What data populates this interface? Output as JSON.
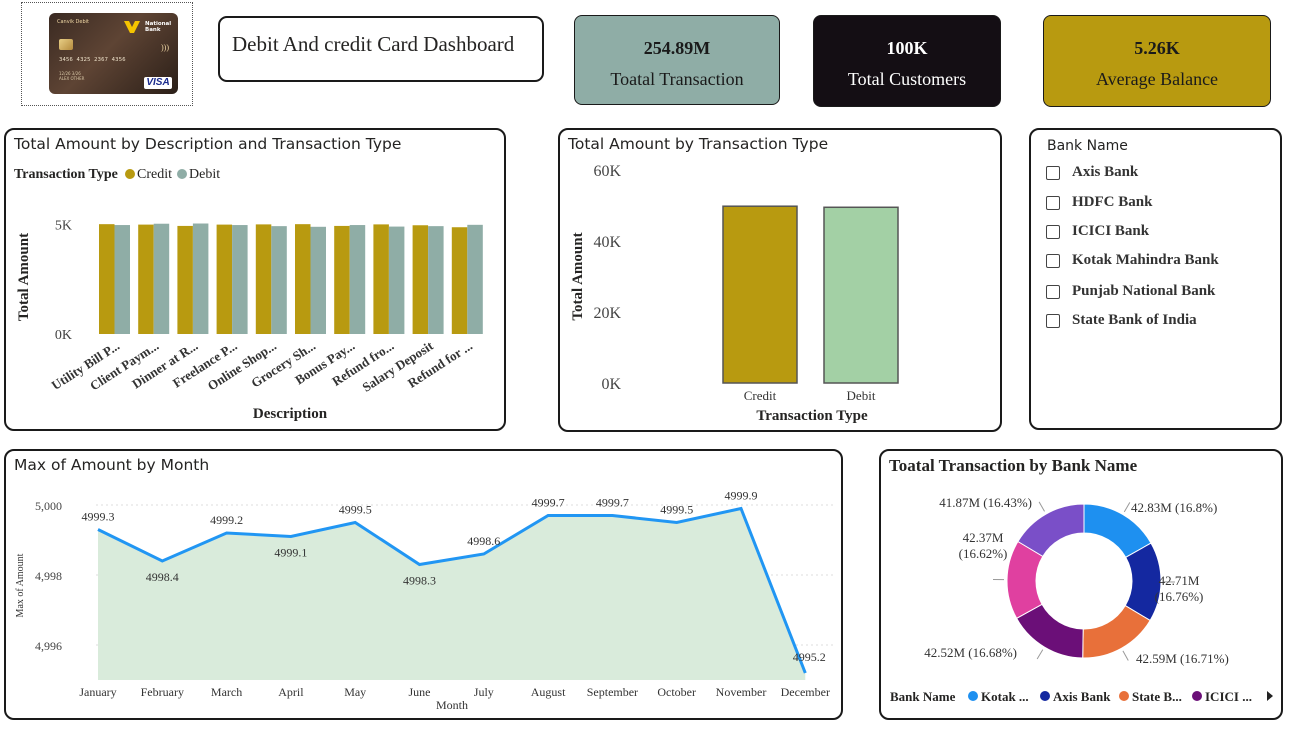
{
  "logo": {
    "card_brand": "Canvik Debit",
    "bank_name_line1": "National",
    "bank_name_line2": "Bank",
    "card_number": "3456 4325 2367 4356",
    "card_small_1": "12/26  3/26",
    "card_small_2": "ALEX OTHER",
    "network": "VISA"
  },
  "dashboard_title": "Debit And credit Card Dashboard",
  "kpis": [
    {
      "value": "254.89M",
      "label": "Toatal Transaction",
      "bg": "#8fada6",
      "color": "#1a1a1a"
    },
    {
      "value": "100K",
      "label": "Total Customers",
      "bg": "#140e14",
      "color": "#ffffff"
    },
    {
      "value": "5.26K",
      "label": "Average  Balance",
      "bg": "#b89a10",
      "color": "#1a1a1a"
    }
  ],
  "colors": {
    "credit": "#b89a10",
    "debit_small": "#8fada6",
    "debit_large": "#a3d0a5",
    "line": "#2196f3",
    "area": "#d9ebdb"
  },
  "chart_data": [
    {
      "type": "bar",
      "title": "Total Amount by Description and Transaction Type",
      "legend_title": "Transaction Type",
      "legend_position": "top-left",
      "xlabel": "Description",
      "ylabel": "Total Amount",
      "yticks": [
        "5K",
        "0K"
      ],
      "ylim": [
        0,
        5200
      ],
      "categories": [
        "Utility Bill P...",
        "Client Paym...",
        "Dinner at R...",
        "Freelance P...",
        "Online Shop...",
        "Grocery Sh...",
        "Bonus Pay...",
        "Refund fro...",
        "Salary Deposit",
        "Refund for ..."
      ],
      "series": [
        {
          "name": "Credit",
          "values": [
            5010,
            4990,
            4930,
            4990,
            5000,
            5010,
            4930,
            5000,
            4960,
            4870
          ]
        },
        {
          "name": "Debit",
          "values": [
            4970,
            5030,
            5040,
            4970,
            4920,
            4890,
            4970,
            4900,
            4920,
            4980
          ]
        }
      ]
    },
    {
      "type": "bar",
      "title": "Total Amount by Transaction Type",
      "xlabel": "Transaction Type",
      "ylabel": "Total Amount",
      "yticks": [
        "60K",
        "40K",
        "20K",
        "0K"
      ],
      "ylim": [
        0,
        60000
      ],
      "categories": [
        "Credit",
        "Debit"
      ],
      "values": [
        49800,
        49500
      ]
    },
    {
      "type": "area",
      "title": "Max of Amount by Month",
      "xlabel": "Month",
      "ylabel": "Max of Amount",
      "yticks": [
        "5,000",
        "4,998",
        "4,996"
      ],
      "ylim": [
        4995.0,
        5000.4
      ],
      "grid": true,
      "categories": [
        "January",
        "February",
        "March",
        "April",
        "May",
        "June",
        "July",
        "August",
        "September",
        "October",
        "November",
        "December"
      ],
      "values": [
        4999.3,
        4998.4,
        4999.2,
        4999.1,
        4999.5,
        4998.3,
        4998.6,
        4999.7,
        4999.7,
        4999.5,
        4999.9,
        4995.2
      ],
      "labels": [
        "4999.3",
        "4998.4",
        "4999.2",
        "4999.1",
        "4999.5",
        "4998.3",
        "4998.6",
        "4999.7",
        "4999.7",
        "4999.5",
        "4999.9",
        "4995.2"
      ]
    },
    {
      "type": "pie",
      "title": "Toatal Transaction by Bank Name",
      "legend_title": "Bank Name",
      "legend_position": "bottom",
      "slices": [
        {
          "name": "Kotak Mahindra Bank",
          "value": 42.83,
          "label": "42.83M (16.8%)",
          "color": "#1e90f0"
        },
        {
          "name": "Axis Bank",
          "value": 42.71,
          "label": "42.71M (16.76%)",
          "color": "#1428a0"
        },
        {
          "name": "State Bank of India",
          "value": 42.59,
          "label": "42.59M (16.71%)",
          "color": "#e8703a"
        },
        {
          "name": "ICICI Bank",
          "value": 42.52,
          "label": "42.52M (16.68%)",
          "color": "#6b0f78"
        },
        {
          "name": "HDFC Bank",
          "value": 42.37,
          "label": "42.37M (16.62%)",
          "color": "#e040a0"
        },
        {
          "name": "Punjab National Bank",
          "value": 41.87,
          "label": "41.87M (16.43%)",
          "color": "#7a4fc8"
        }
      ],
      "legend_items": [
        "Kotak ...",
        "Axis Bank",
        "State B...",
        "ICICI ..."
      ]
    }
  ],
  "slicer": {
    "title": "Bank Name",
    "items": [
      "Axis Bank",
      "HDFC Bank",
      "ICICI Bank",
      "Kotak Mahindra Bank",
      "Punjab National Bank",
      "State Bank of India"
    ]
  }
}
